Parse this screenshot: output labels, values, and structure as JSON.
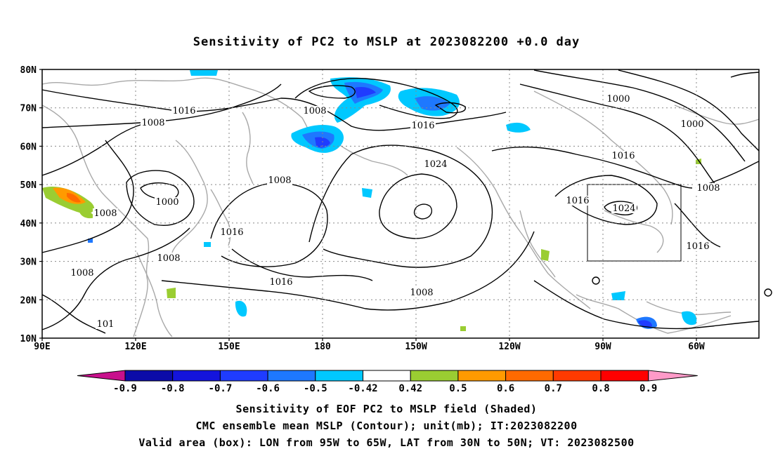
{
  "title": "Sensitivity of PC2 to MSLP at 2023082200 +0.0 day",
  "map": {
    "lat_labels": [
      "80N",
      "70N",
      "60N",
      "50N",
      "40N",
      "30N",
      "20N",
      "10N"
    ],
    "lon_labels": [
      "90E",
      "120E",
      "150E",
      "180",
      "150W",
      "120W",
      "90W",
      "60W"
    ],
    "contour_labels": [
      {
        "text": "1016"
      },
      {
        "text": "1008"
      },
      {
        "text": "1008"
      },
      {
        "text": "1016"
      },
      {
        "text": "1000"
      },
      {
        "text": "1000"
      },
      {
        "text": "1008"
      },
      {
        "text": "1024"
      },
      {
        "text": "1016"
      },
      {
        "text": "1008"
      },
      {
        "text": "1000"
      },
      {
        "text": "1008"
      },
      {
        "text": "1016"
      },
      {
        "text": "1024"
      },
      {
        "text": "1016"
      },
      {
        "text": "1008"
      },
      {
        "text": "1008"
      },
      {
        "text": "1016"
      },
      {
        "text": "1016"
      },
      {
        "text": "1008"
      },
      {
        "text": "101"
      }
    ],
    "valid_box": {
      "lon_west": -95,
      "lon_east": -65,
      "lat_south": 30,
      "lat_north": 50
    }
  },
  "colorbar": {
    "labels": [
      "-0.9",
      "-0.8",
      "-0.7",
      "-0.6",
      "-0.5",
      "-0.42",
      "0.42",
      "0.5",
      "0.6",
      "0.7",
      "0.8",
      "0.9"
    ],
    "colors": [
      "#0b0ba8",
      "#1414dc",
      "#1f3cff",
      "#1e78ff",
      "#00c8ff",
      "#ffffff",
      "#9acd32",
      "#ff9a00",
      "#ff6a00",
      "#ff3a00",
      "#ff0000"
    ],
    "low_end_color": "#c8108c",
    "high_end_color": "#ff9ac8"
  },
  "captions": [
    "Sensitivity of EOF PC2 to MSLP field (Shaded)",
    "CMC ensemble mean MSLP (Contour); unit(mb); IT:2023082200",
    "Valid area (box): LON from 95W to 65W, LAT from 30N to 50N; VT: 2023082500"
  ]
}
